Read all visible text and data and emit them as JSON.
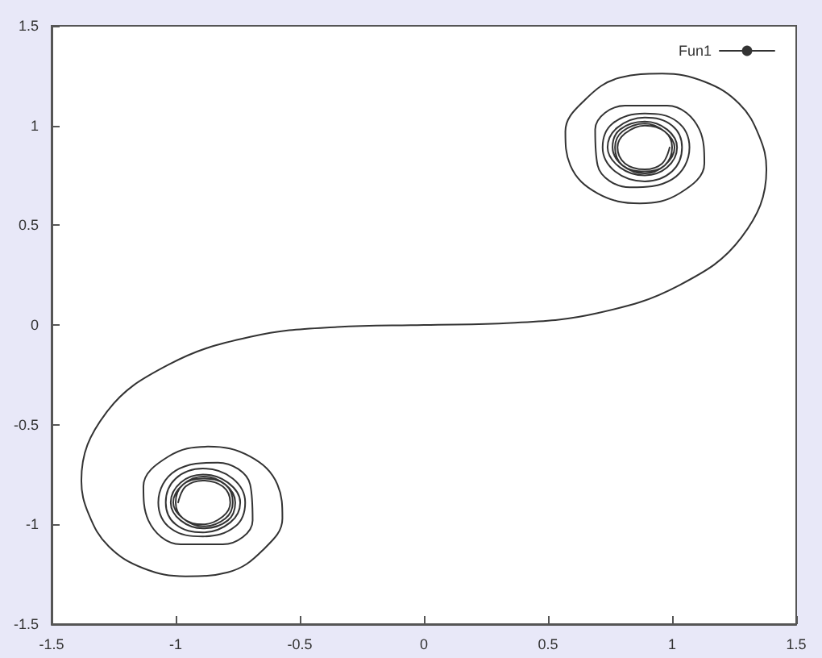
{
  "chart_data": {
    "type": "line",
    "legend": "top right",
    "grid": false,
    "marker": "none",
    "line_style": "solid",
    "xlim": [
      -1.5,
      1.5
    ],
    "ylim": [
      -1.5,
      1.5
    ],
    "xticks": [
      -1.5,
      -1,
      -0.5,
      0,
      0.5,
      1,
      1.5
    ],
    "yticks": [
      -1.5,
      -1,
      -0.5,
      0,
      0.5,
      1,
      1.5
    ],
    "x": [
      -0.99,
      -0.96,
      -0.89,
      -0.81,
      -0.78,
      -0.81,
      -0.89,
      -0.97,
      -1.0,
      -0.97,
      -0.89,
      -0.8,
      -0.77,
      -0.8,
      -0.89,
      -0.97,
      -1.01,
      -0.97,
      -0.89,
      -0.8,
      -0.76,
      -0.79,
      -0.89,
      -0.98,
      -1.02,
      -0.98,
      -0.89,
      -0.79,
      -0.74,
      -0.78,
      -0.89,
      -1.0,
      -1.04,
      -1.0,
      -0.89,
      -0.77,
      -0.72,
      -0.76,
      -0.89,
      -1.02,
      -1.07,
      -1.0,
      -0.83,
      -0.7,
      -0.69,
      -0.81,
      -0.98,
      -1.11,
      -1.13,
      -1.03,
      -0.87,
      -0.7,
      -0.59,
      -0.57,
      -0.65,
      -0.79,
      -0.96,
      -1.13,
      -1.27,
      -1.35,
      -1.38,
      -1.28,
      -1.03,
      -0.7,
      -0.35,
      0,
      0.35,
      0.7,
      1.03,
      1.28,
      1.38,
      1.35,
      1.27,
      1.13,
      0.96,
      0.79,
      0.65,
      0.57,
      0.59,
      0.7,
      0.87,
      1.03,
      1.13,
      1.11,
      0.98,
      0.81,
      0.69,
      0.7,
      0.83,
      1.0,
      1.07,
      1.02,
      0.89,
      0.76,
      0.72,
      0.77,
      0.89,
      1.0,
      1.04,
      1.0,
      0.89,
      0.78,
      0.74,
      0.79,
      0.89,
      0.98,
      1.02,
      0.98,
      0.89,
      0.79,
      0.76,
      0.8,
      0.89,
      0.97,
      1.01,
      0.97,
      0.89,
      0.8,
      0.77,
      0.8,
      0.89,
      0.97,
      1.0,
      0.97,
      0.89,
      0.81,
      0.78,
      0.81,
      0.89,
      0.96,
      0.99
    ],
    "series": [
      {
        "name": "Fun1",
        "color": "#333333",
        "values": [
          -0.89,
          -0.81,
          -0.78,
          -0.81,
          -0.89,
          -0.96,
          -1.0,
          -0.97,
          -0.89,
          -0.8,
          -0.77,
          -0.8,
          -0.89,
          -0.97,
          -1.01,
          -0.97,
          -0.89,
          -0.8,
          -0.76,
          -0.8,
          -0.89,
          -0.98,
          -1.02,
          -0.98,
          -0.89,
          -0.79,
          -0.75,
          -0.79,
          -0.89,
          -0.99,
          -1.04,
          -1.0,
          -0.89,
          -0.77,
          -0.72,
          -0.77,
          -0.89,
          -1.01,
          -1.06,
          -1.02,
          -0.89,
          -0.73,
          -0.69,
          -0.8,
          -0.98,
          -1.1,
          -1.1,
          -0.98,
          -0.81,
          -0.66,
          -0.61,
          -0.66,
          -0.8,
          -0.97,
          -1.13,
          -1.24,
          -1.26,
          -1.22,
          -1.11,
          -0.95,
          -0.78,
          -0.44,
          -0.2,
          -0.06,
          -0.01,
          0,
          0.01,
          0.06,
          0.2,
          0.44,
          0.78,
          0.95,
          1.11,
          1.22,
          1.26,
          1.24,
          1.13,
          0.97,
          0.8,
          0.66,
          0.61,
          0.66,
          0.81,
          0.98,
          1.1,
          1.1,
          0.98,
          0.8,
          0.69,
          0.73,
          0.89,
          1.02,
          1.06,
          1.01,
          0.89,
          0.77,
          0.72,
          0.77,
          0.89,
          1.0,
          1.04,
          0.99,
          0.89,
          0.79,
          0.75,
          0.79,
          0.89,
          0.98,
          1.02,
          0.98,
          0.89,
          0.8,
          0.76,
          0.8,
          0.89,
          0.97,
          1.01,
          0.97,
          0.89,
          0.8,
          0.77,
          0.8,
          0.89,
          0.97,
          1.0,
          0.96,
          0.89,
          0.81,
          0.78,
          0.81,
          0.89
        ]
      }
    ]
  }
}
